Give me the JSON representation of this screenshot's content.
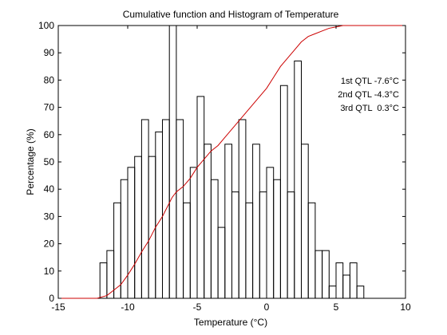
{
  "chart_data": {
    "type": "histogram+line",
    "title": "Cumulative function and Histogram of Temperature",
    "xlabel": "Temperature (°C)",
    "ylabel": "Percentage (%)",
    "xlim": [
      -15,
      10
    ],
    "ylim": [
      0,
      100
    ],
    "grid": false,
    "xticks": [
      -15,
      -10,
      -5,
      0,
      5,
      10
    ],
    "yticks": [
      0,
      10,
      20,
      30,
      40,
      50,
      60,
      70,
      80,
      90,
      100
    ],
    "x_tick_labels": [
      "-15",
      "-10",
      "-5",
      "0",
      "5",
      "10"
    ],
    "y_tick_labels": [
      "0",
      "10",
      "20",
      "30",
      "40",
      "50",
      "60",
      "70",
      "80",
      "90",
      "100"
    ],
    "annotations": [
      "1st QTL -7.6°C",
      "2nd QTL -4.3°C",
      "3rd QTL  0.3°C"
    ],
    "annotation_color": "#cc0000",
    "histogram": {
      "color": "#000000",
      "bin_edges": [
        -12.0,
        -11.5,
        -11.0,
        -10.5,
        -10.0,
        -9.5,
        -9.0,
        -8.5,
        -8.0,
        -7.5,
        -7.0,
        -6.5,
        -6.0,
        -5.5,
        -5.0,
        -4.5,
        -4.0,
        -3.5,
        -3.0,
        -2.5,
        -2.0,
        -1.5,
        -1.0,
        -0.5,
        0.0,
        0.5,
        1.0,
        1.5,
        2.0,
        2.5,
        3.0,
        3.5,
        4.0,
        4.5,
        5.0,
        5.5,
        6.0,
        6.5,
        7.0
      ],
      "values": [
        13,
        17.5,
        35,
        43.5,
        48,
        52,
        65.5,
        52,
        61,
        65.5,
        100,
        65.5,
        35,
        48,
        74,
        56.5,
        43.5,
        26,
        56.5,
        39,
        65.5,
        35,
        56.5,
        39,
        48,
        43.5,
        78,
        39,
        87,
        56.5,
        35,
        17.5,
        17.5,
        4.5,
        13,
        8.5,
        13,
        4.5
      ]
    },
    "cumulative": {
      "color": "#cc0000",
      "x": [
        -15,
        -12.2,
        -12,
        -11.5,
        -11,
        -10.5,
        -10,
        -9.5,
        -9,
        -8.5,
        -8,
        -7.5,
        -7,
        -6.8,
        -6.5,
        -6,
        -5.5,
        -5,
        -4.5,
        -4,
        -3.5,
        -3,
        -2.5,
        -2,
        -1.5,
        -1,
        -0.5,
        0,
        0.5,
        1,
        1.5,
        2,
        2.5,
        3,
        3.5,
        4,
        4.5,
        5,
        5.5,
        6,
        10
      ],
      "y": [
        0,
        0,
        0.3,
        1,
        3,
        5,
        8.5,
        12.5,
        17,
        21,
        26,
        30,
        35,
        37,
        39,
        41,
        44,
        48,
        51,
        54,
        56,
        59,
        62,
        65,
        68,
        71,
        74,
        77,
        81,
        85,
        88,
        91,
        94,
        96,
        97,
        98,
        99,
        99.5,
        100,
        100,
        100
      ]
    }
  }
}
